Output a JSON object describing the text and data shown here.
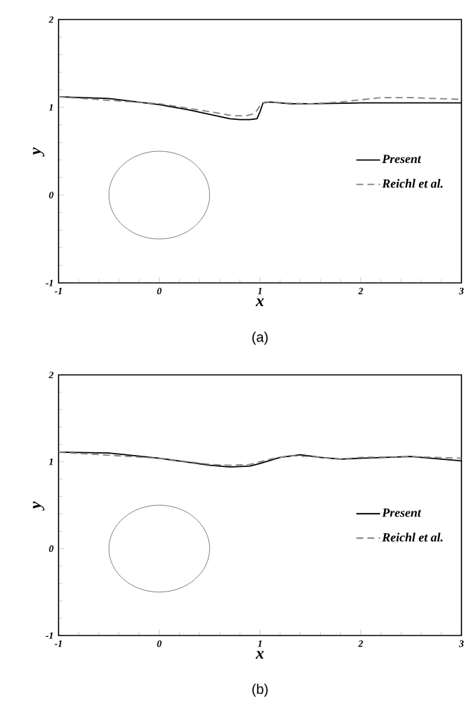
{
  "chart_data": [
    {
      "type": "line",
      "xlabel": "x",
      "ylabel": "y",
      "xlim": [
        -1,
        3
      ],
      "ylim": [
        -1,
        2
      ],
      "xticks": [
        -1,
        0,
        1,
        2,
        3
      ],
      "yticks": [
        -1,
        0,
        1,
        2
      ],
      "legend": "right",
      "annotations": [
        "(a)"
      ],
      "series": [
        {
          "name": "Present",
          "color": "#000000",
          "line_style": "solid",
          "x": [
            -1,
            -0.5,
            0,
            0.3,
            0.5,
            0.7,
            0.8,
            0.9,
            0.97,
            1.0,
            1.03,
            1.1,
            1.3,
            1.5,
            2,
            3
          ],
          "values": [
            1.12,
            1.1,
            1.03,
            0.97,
            0.92,
            0.87,
            0.86,
            0.86,
            0.87,
            0.95,
            1.05,
            1.06,
            1.04,
            1.04,
            1.05,
            1.05
          ]
        },
        {
          "name": "Reichl et al.",
          "color": "#808080",
          "line_style": "dashed",
          "x": [
            -1,
            0,
            0.5,
            0.7,
            0.85,
            0.95,
            1.0,
            1.05,
            1.2,
            1.5,
            1.8,
            2.2,
            2.5,
            3
          ],
          "values": [
            1.12,
            1.04,
            0.95,
            0.91,
            0.9,
            0.93,
            1.02,
            1.06,
            1.05,
            1.04,
            1.06,
            1.11,
            1.11,
            1.09
          ]
        }
      ]
    },
    {
      "type": "line",
      "xlabel": "x",
      "ylabel": "y",
      "xlim": [
        -1,
        3
      ],
      "ylim": [
        -1,
        2
      ],
      "xticks": [
        -1,
        0,
        1,
        2,
        3
      ],
      "yticks": [
        -1,
        0,
        1,
        2
      ],
      "legend": "right",
      "annotations": [
        "(b)"
      ],
      "series": [
        {
          "name": "Present",
          "color": "#000000",
          "line_style": "solid",
          "x": [
            -1,
            -0.5,
            0,
            0.5,
            0.7,
            0.9,
            1.0,
            1.2,
            1.4,
            1.6,
            1.8,
            2,
            2.5,
            3
          ],
          "values": [
            1.11,
            1.1,
            1.04,
            0.96,
            0.94,
            0.95,
            0.98,
            1.05,
            1.08,
            1.05,
            1.03,
            1.04,
            1.06,
            1.01
          ]
        },
        {
          "name": "Reichl et al.",
          "color": "#808080",
          "line_style": "dashed",
          "x": [
            -1,
            0,
            0.5,
            0.7,
            0.9,
            1.1,
            1.3,
            1.5,
            1.8,
            2,
            2.5,
            3
          ],
          "values": [
            1.11,
            1.04,
            0.97,
            0.96,
            0.97,
            1.03,
            1.07,
            1.06,
            1.03,
            1.05,
            1.06,
            1.04
          ]
        }
      ]
    }
  ]
}
